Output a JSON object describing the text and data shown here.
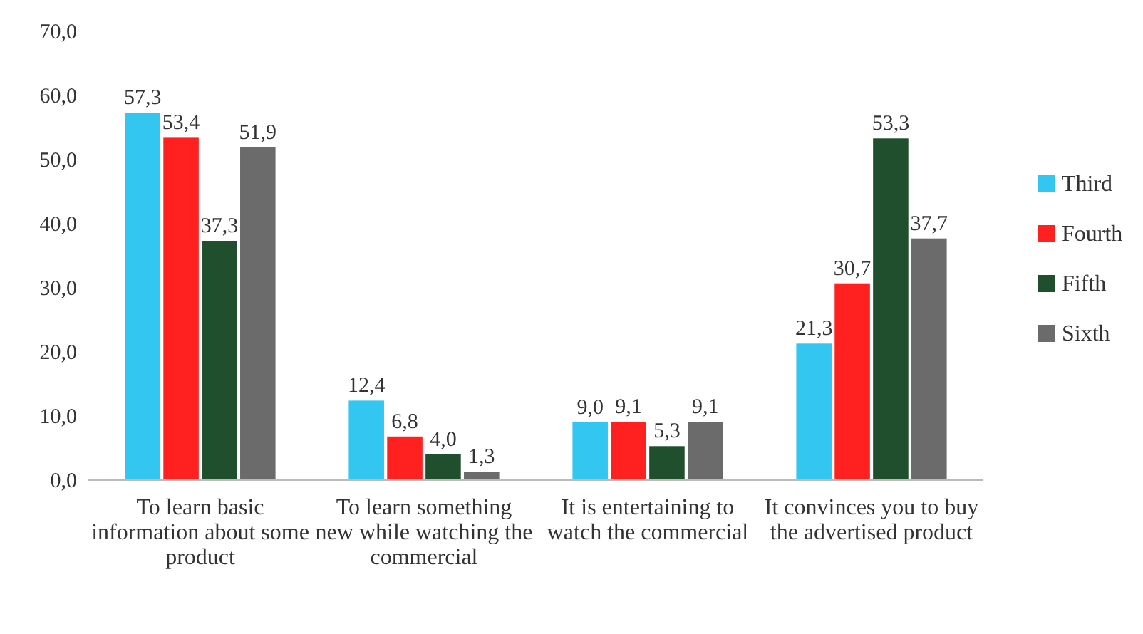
{
  "chart_data": {
    "type": "bar",
    "categories": [
      "To learn basic information about some product",
      "To learn something new while watching the commercial",
      "It is entertaining to watch the commercial",
      "It convinces you to buy the advertised product"
    ],
    "series": [
      {
        "name": "Third",
        "color": "#33c6f0",
        "values": [
          57.3,
          12.4,
          9.0,
          21.3
        ],
        "value_labels": [
          "57,3",
          "12,4",
          "9,0",
          "21,3"
        ]
      },
      {
        "name": "Fourth",
        "color": "#ff2020",
        "values": [
          53.4,
          6.8,
          9.1,
          30.7
        ],
        "value_labels": [
          "53,4",
          "6,8",
          "9,1",
          "30,7"
        ]
      },
      {
        "name": "Fifth",
        "color": "#1f4f2c",
        "values": [
          37.3,
          4.0,
          5.3,
          53.3
        ],
        "value_labels": [
          "37,3",
          "4,0",
          "5,3",
          "53,3"
        ]
      },
      {
        "name": "Sixth",
        "color": "#6b6b6b",
        "values": [
          51.9,
          1.3,
          9.1,
          37.7
        ],
        "value_labels": [
          "51,9",
          "1,3",
          "9,1",
          "37,7"
        ]
      }
    ],
    "ylim": [
      0,
      70
    ],
    "yticks": [
      {
        "value": 0,
        "label": "0,0"
      },
      {
        "value": 10,
        "label": "10,0"
      },
      {
        "value": 20,
        "label": "20,0"
      },
      {
        "value": 30,
        "label": "30,0"
      },
      {
        "value": 40,
        "label": "40,0"
      },
      {
        "value": 50,
        "label": "50,0"
      },
      {
        "value": 60,
        "label": "60,0"
      },
      {
        "value": 70,
        "label": "70,0"
      }
    ],
    "grid": false,
    "legend": "right"
  }
}
